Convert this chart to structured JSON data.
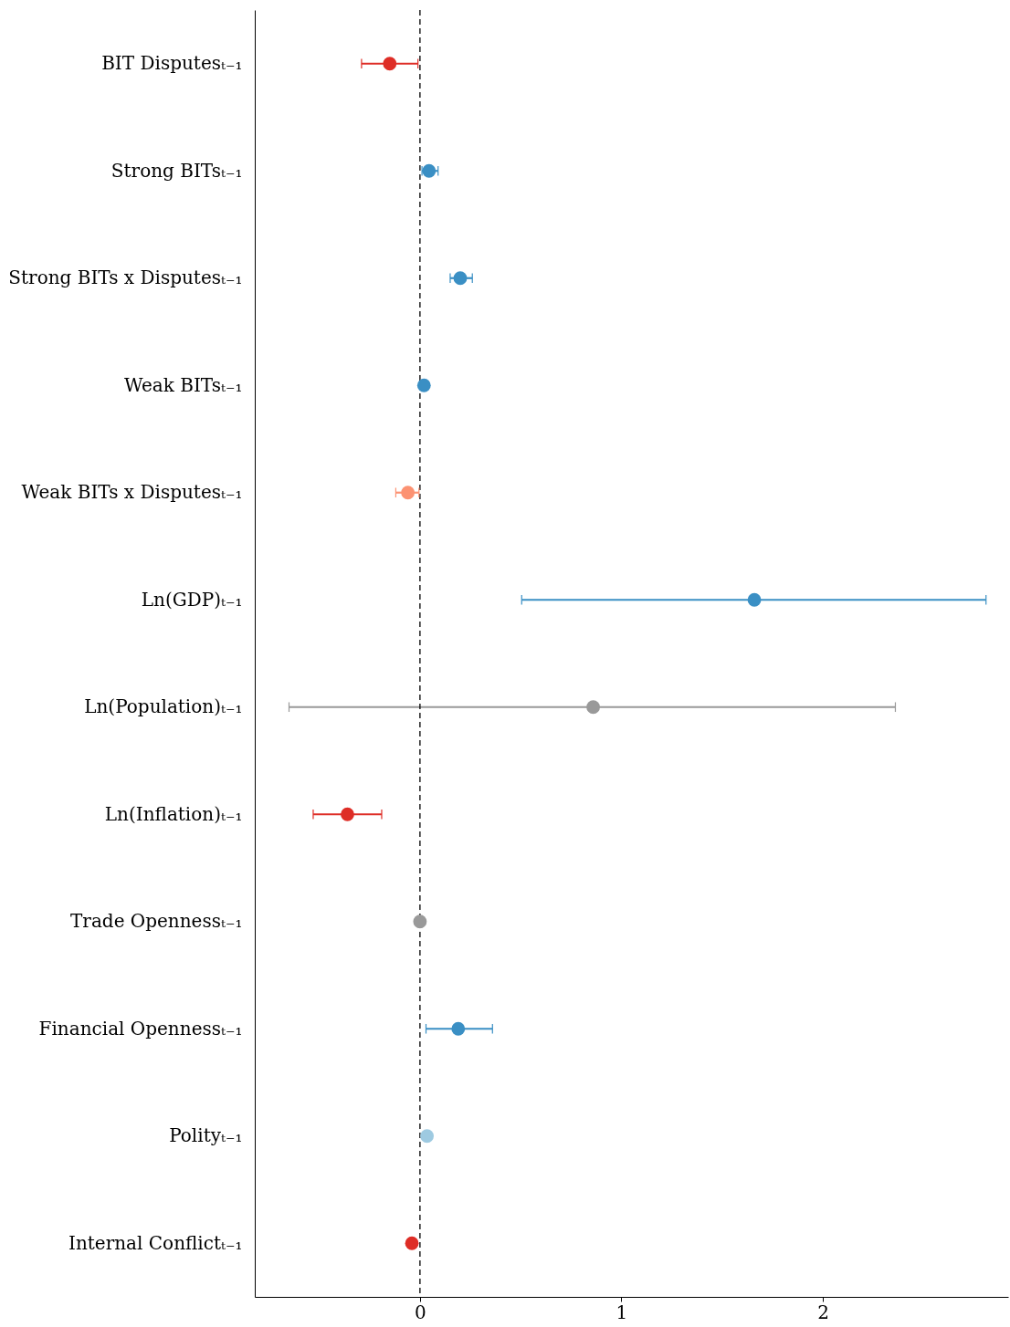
{
  "chart_data": {
    "type": "scatter",
    "orientation": "horizontal",
    "categories": [
      "BIT Disputesₜ₋₁",
      "Strong BITsₜ₋₁",
      "Strong BITs x Disputesₜ₋₁",
      "Weak BITsₜ₋₁",
      "Weak BITs x Disputesₜ₋₁",
      "Ln(GDP)ₜ₋₁",
      "Ln(Population)ₜ₋₁",
      "Ln(Inflation)ₜ₋₁",
      "Trade Opennessₜ₋₁",
      "Financial Opennessₜ₋₁",
      "Polityₜ₋₁",
      "Internal Conflictₜ₋₁"
    ],
    "series": [
      {
        "marker": "circle",
        "values": [
          -0.15,
          0.045,
          0.2,
          0.02,
          -0.06,
          1.66,
          0.86,
          -0.36,
          0.0,
          0.19,
          0.035,
          -0.04
        ],
        "colors": [
          "#de2d26",
          "#3a8fc4",
          "#3a8fc4",
          "#3a8fc4",
          "#fc9272",
          "#3a8fc4",
          "#999999",
          "#de2d26",
          "#999999",
          "#3a8fc4",
          "#9ecae1",
          "#de2d26"
        ],
        "errors": [
          [
            -0.29,
            -0.01
          ],
          [
            0.01,
            0.09
          ],
          [
            0.15,
            0.26
          ],
          null,
          [
            -0.12,
            -0.005
          ],
          [
            0.505,
            2.81
          ],
          [
            -0.65,
            2.36
          ],
          [
            -0.53,
            -0.19
          ],
          null,
          [
            0.03,
            0.36
          ],
          null,
          null
        ]
      }
    ],
    "xlim": [
      -0.82,
      2.92
    ],
    "xticks": [
      0,
      1,
      2
    ],
    "ref_lines": [
      {
        "axis": "x",
        "value": 0,
        "line_style": "dashed"
      }
    ],
    "grid": false
  }
}
